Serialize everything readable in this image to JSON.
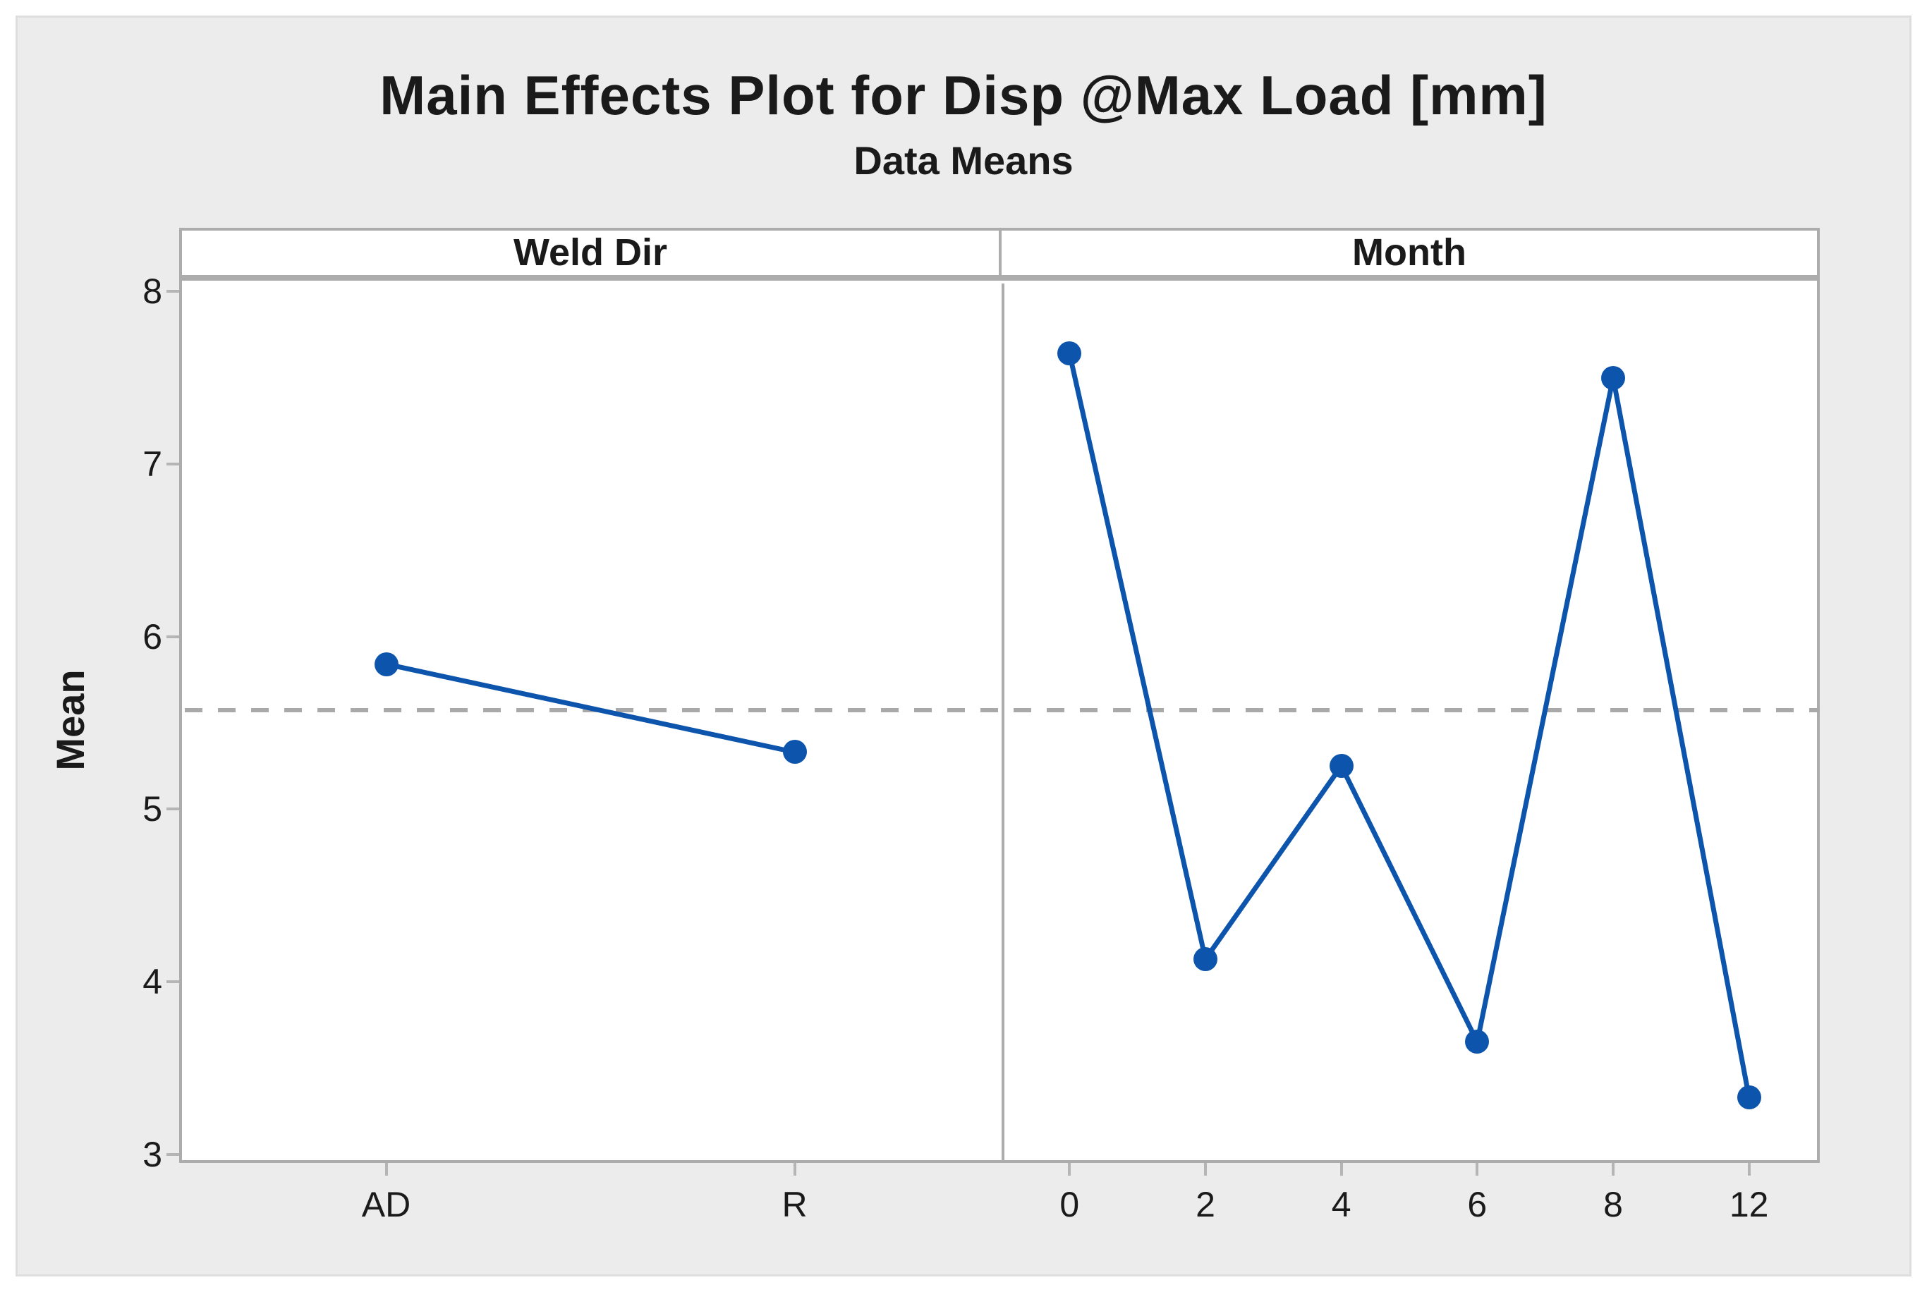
{
  "title": "Main Effects Plot for Disp @Max Load [mm]",
  "subtitle": "Data Means",
  "y_axis": {
    "label": "Mean",
    "ticks": [
      "8",
      "7",
      "6",
      "5",
      "4",
      "3"
    ],
    "range": [
      2.95,
      8.07
    ]
  },
  "reference_line": {
    "value": 5.59,
    "style": "dashed",
    "description": "grand mean"
  },
  "colors": {
    "series": "#0d55ac",
    "axis_line": "#acacac",
    "tick_mark": "#b5b5b5",
    "reference_dash": "#a9a9a9",
    "figure_bg": "#ececec",
    "panel_bg": "#ffffff",
    "outer_border": "#dedede",
    "text": "#1a1a1a"
  },
  "chart_data": [
    {
      "type": "line",
      "panel_label": "Weld Dir",
      "categories": [
        "AD",
        "R"
      ],
      "values": [
        5.84,
        5.33
      ],
      "reference_line": 5.59,
      "ylabel": "Mean",
      "ylim": [
        2.95,
        8.07
      ],
      "grid": false,
      "legend": "none",
      "marker": "filled-circle"
    },
    {
      "type": "line",
      "panel_label": "Month",
      "categories": [
        "0",
        "2",
        "4",
        "6",
        "8",
        "12"
      ],
      "values": [
        7.64,
        4.13,
        5.25,
        3.65,
        7.5,
        3.33
      ],
      "reference_line": 5.59,
      "ylabel": "Mean",
      "ylim": [
        2.95,
        8.07
      ],
      "grid": false,
      "legend": "none",
      "marker": "filled-circle"
    }
  ]
}
